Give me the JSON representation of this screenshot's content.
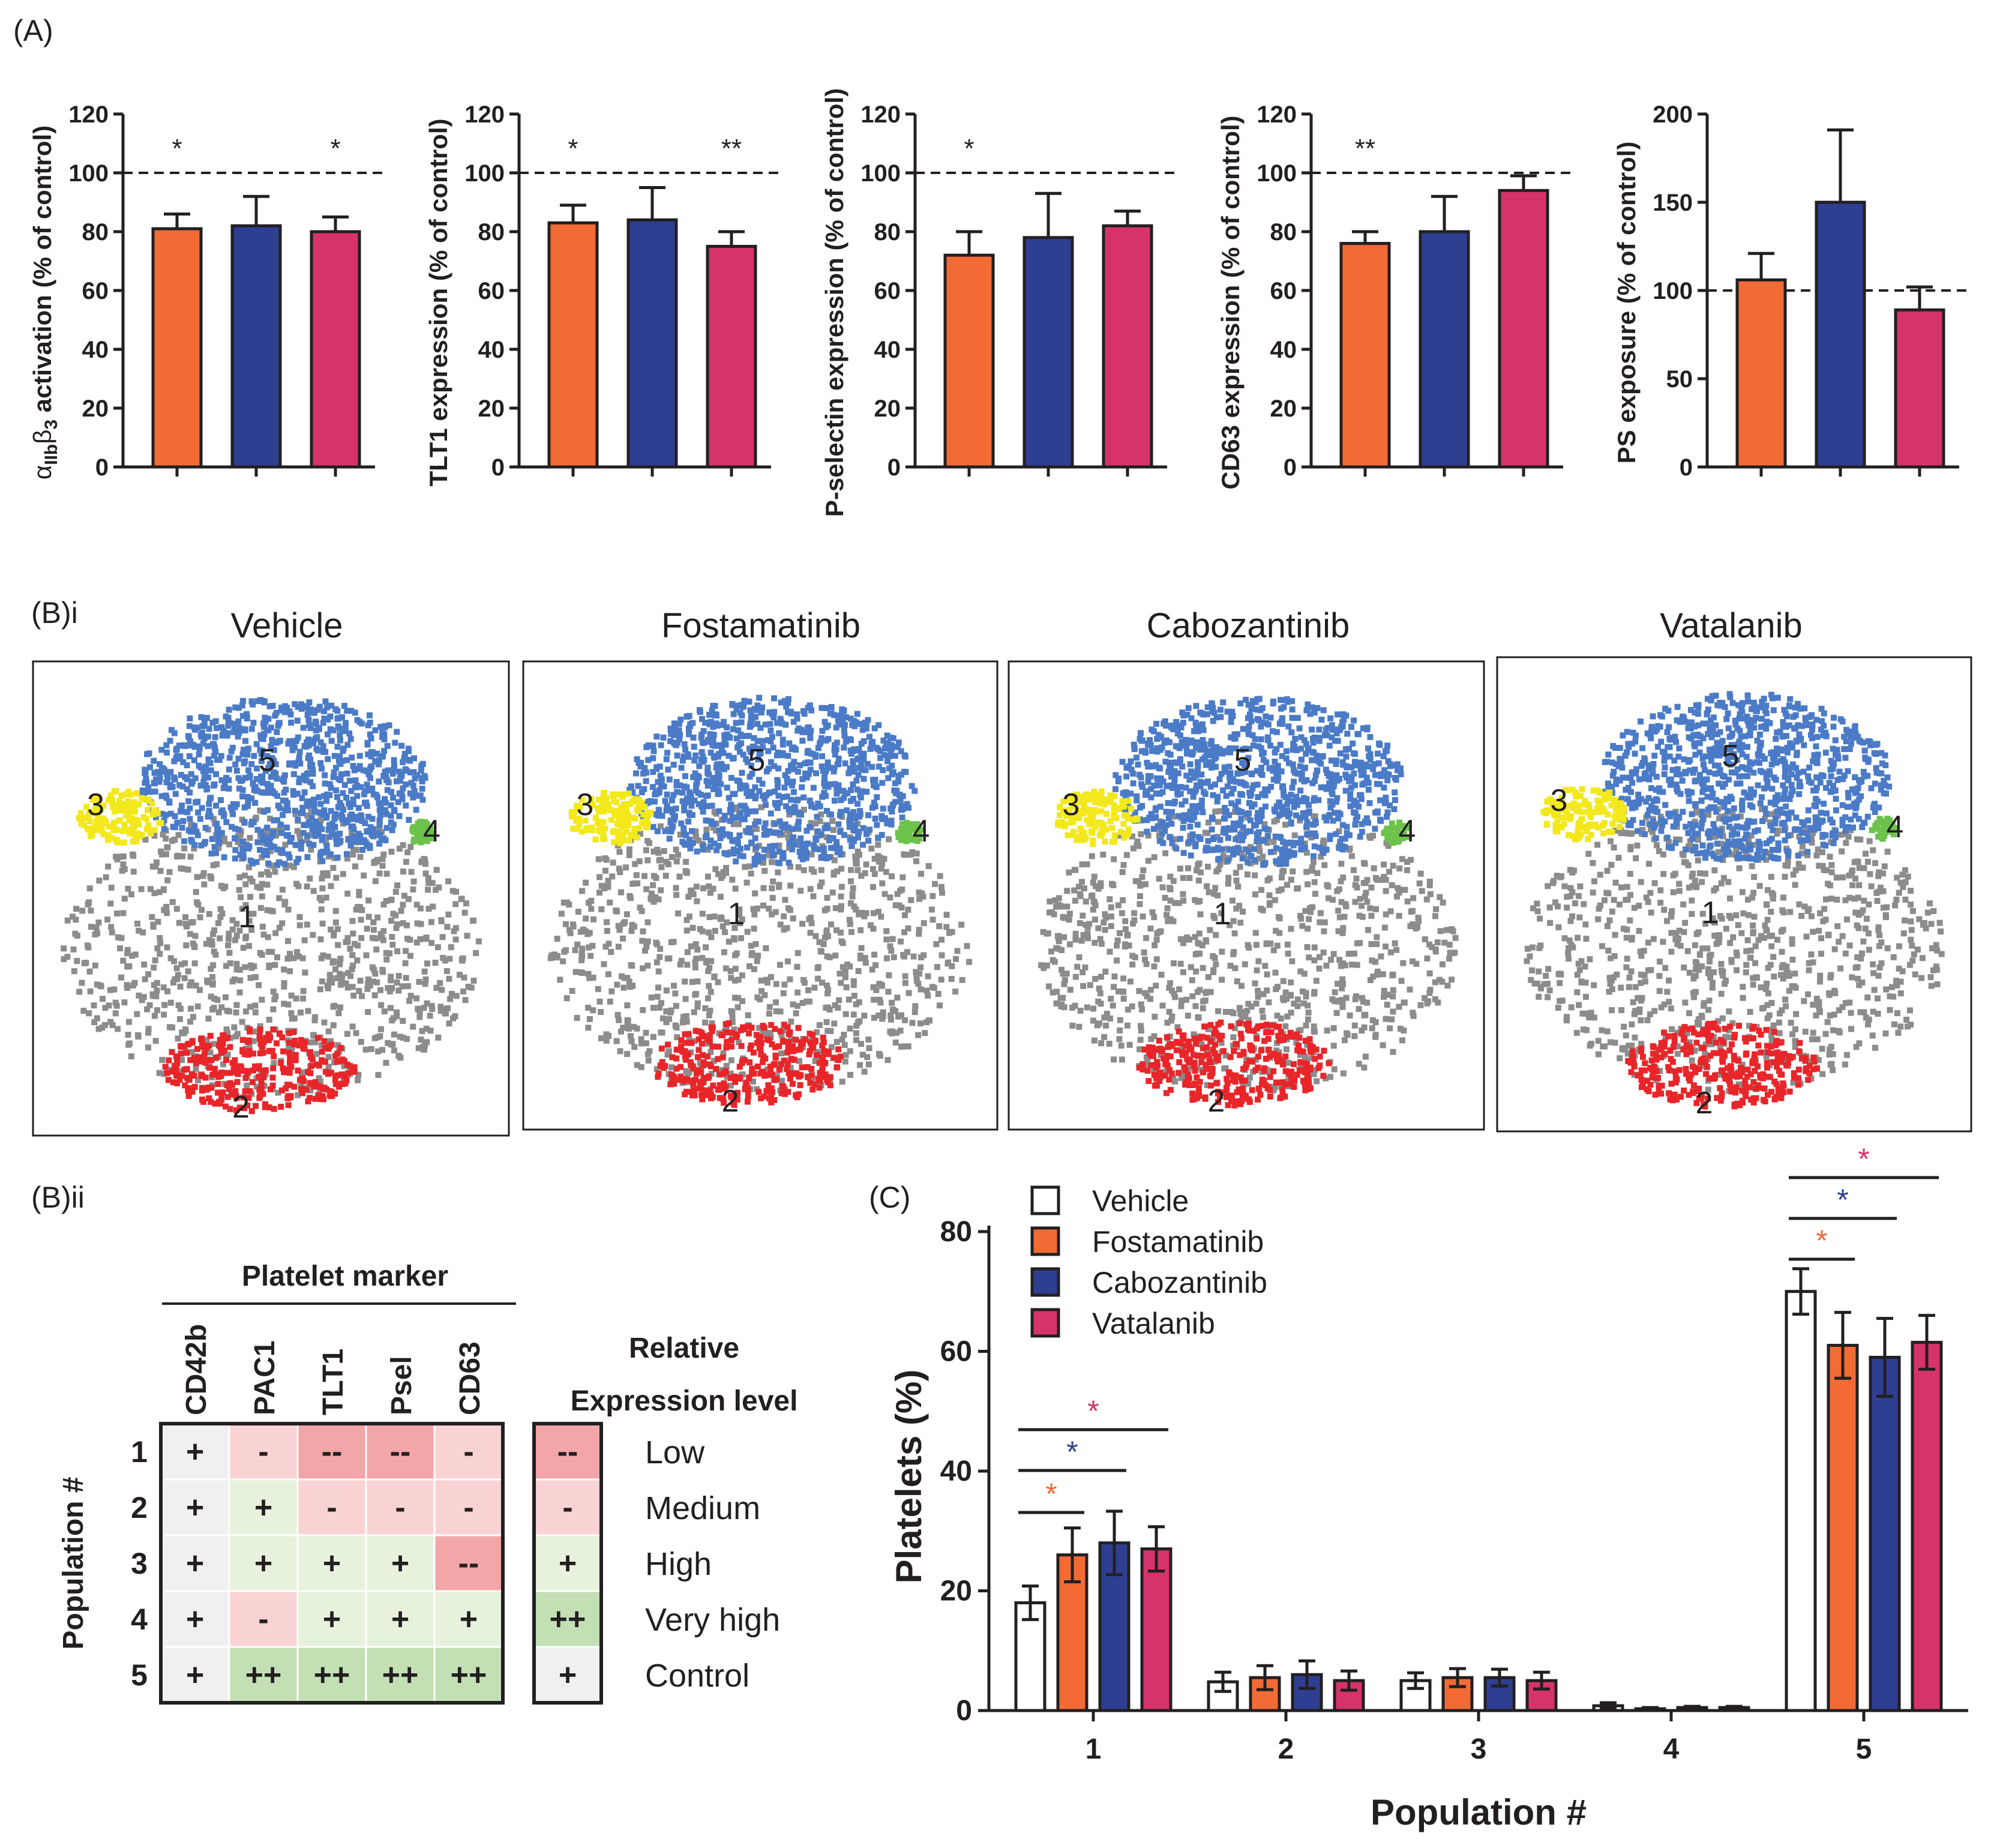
{
  "panel_labels": {
    "A": "(A)",
    "Bi": "(B)i",
    "Bii": "(B)ii",
    "C": "(C)"
  },
  "colors": {
    "Fostamatinib": "#f26b35",
    "Cabozantinib": "#2e3f92",
    "Vatalanib": "#d6336c",
    "Vehicle": "#ffffff",
    "pop1": "#8c8c8c",
    "pop2": "#e8262a",
    "pop3": "#f2e81c",
    "pop4": "#6cc24a",
    "pop5": "#4b7bc7"
  },
  "chart_data": [
    {
      "type": "bar",
      "panel": "A1",
      "categories": [
        "Fostamatinib",
        "Cabozantinib",
        "Vatalanib"
      ],
      "values": [
        81,
        82,
        80
      ],
      "errors": [
        5,
        10,
        5
      ],
      "ylim": [
        0,
        120
      ],
      "yticks": [
        "0",
        "20",
        "40",
        "60",
        "80",
        "100",
        "120"
      ],
      "reference_line": 100,
      "ylabel_parts": [
        "α",
        "IIb",
        "β",
        "3",
        " activation (% of control)"
      ],
      "significance": [
        "*",
        "",
        "*"
      ]
    },
    {
      "type": "bar",
      "panel": "A2",
      "categories": [
        "Fostamatinib",
        "Cabozantinib",
        "Vatalanib"
      ],
      "values": [
        83,
        84,
        75
      ],
      "errors": [
        6,
        11,
        5
      ],
      "ylim": [
        0,
        120
      ],
      "yticks": [
        "0",
        "20",
        "40",
        "60",
        "80",
        "100",
        "120"
      ],
      "reference_line": 100,
      "ylabel": "TLT1 expression  (% of control)",
      "significance": [
        "*",
        "",
        "**"
      ]
    },
    {
      "type": "bar",
      "panel": "A3",
      "categories": [
        "Fostamatinib",
        "Cabozantinib",
        "Vatalanib"
      ],
      "values": [
        72,
        78,
        82
      ],
      "errors": [
        8,
        15,
        5
      ],
      "ylim": [
        0,
        120
      ],
      "yticks": [
        "0",
        "20",
        "40",
        "60",
        "80",
        "100",
        "120"
      ],
      "reference_line": 100,
      "ylabel": "P-selectin expression (% of control)",
      "significance": [
        "*",
        "",
        ""
      ]
    },
    {
      "type": "bar",
      "panel": "A4",
      "categories": [
        "Fostamatinib",
        "Cabozantinib",
        "Vatalanib"
      ],
      "values": [
        76,
        80,
        94
      ],
      "errors": [
        4,
        12,
        5
      ],
      "ylim": [
        0,
        120
      ],
      "yticks": [
        "0",
        "20",
        "40",
        "60",
        "80",
        "100",
        "120"
      ],
      "reference_line": 100,
      "ylabel": "CD63 expression (% of control)",
      "significance": [
        "**",
        "",
        ""
      ]
    },
    {
      "type": "bar",
      "panel": "A5",
      "categories": [
        "Fostamatinib",
        "Cabozantinib",
        "Vatalanib"
      ],
      "values": [
        106,
        150,
        89
      ],
      "errors": [
        15,
        41,
        13
      ],
      "ylim": [
        0,
        200
      ],
      "yticks": [
        "0",
        "50",
        "100",
        "150",
        "200"
      ],
      "reference_line": 100,
      "ylabel": "PS exposure (% of control)",
      "significance": [
        "",
        "",
        ""
      ]
    },
    {
      "type": "bar",
      "panel": "C",
      "xlabel": "Population #",
      "ylabel": "Platelets (%)",
      "ylim": [
        0,
        80
      ],
      "yticks": [
        "0",
        "20",
        "40",
        "60",
        "80"
      ],
      "categories": [
        "1",
        "2",
        "3",
        "4",
        "5"
      ],
      "legend_position": "top-left",
      "series": [
        {
          "name": "Vehicle",
          "values": [
            18,
            4.8,
            5,
            0.8,
            70
          ],
          "errors": [
            2.8,
            1.6,
            1.3,
            0.5,
            3.8
          ]
        },
        {
          "name": "Fostamatinib",
          "values": [
            26,
            5.5,
            5.5,
            0.3,
            61
          ],
          "errors": [
            4.5,
            2,
            1.5,
            0.2,
            5.5
          ]
        },
        {
          "name": "Cabozantinib",
          "values": [
            28,
            6,
            5.5,
            0.5,
            59
          ],
          "errors": [
            5.3,
            2.3,
            1.4,
            0.2,
            6.5
          ]
        },
        {
          "name": "Vatalanib",
          "values": [
            27,
            5,
            5,
            0.5,
            61.5
          ],
          "errors": [
            3.7,
            1.6,
            1.4,
            0.2,
            4.5
          ]
        }
      ],
      "significance_brackets": [
        {
          "population": "1",
          "against": "Fostamatinib",
          "label": "*"
        },
        {
          "population": "1",
          "against": "Cabozantinib",
          "label": "*"
        },
        {
          "population": "1",
          "against": "Vatalanib",
          "label": "*"
        },
        {
          "population": "5",
          "against": "Fostamatinib",
          "label": "*"
        },
        {
          "population": "5",
          "against": "Cabozantinib",
          "label": "*"
        },
        {
          "population": "5",
          "against": "Vatalanib",
          "label": "*"
        }
      ]
    }
  ],
  "tsne": {
    "panels": [
      "Vehicle",
      "Fostamatinib",
      "Cabozantinib",
      "Vatalanib"
    ],
    "cluster_labels": [
      "1",
      "2",
      "3",
      "4",
      "5"
    ]
  },
  "table": {
    "title": "Platelet marker",
    "markers": [
      "CD42b",
      "PAC1",
      "TLT1",
      "Psel",
      "CD63"
    ],
    "row_axis_label": "Population #",
    "rows": [
      {
        "label": "1",
        "cells": [
          "+",
          "-",
          "--",
          "--",
          "-"
        ]
      },
      {
        "label": "2",
        "cells": [
          "+",
          "+",
          "-",
          "-",
          "-"
        ]
      },
      {
        "label": "3",
        "cells": [
          "+",
          "+",
          "+",
          "+",
          "--"
        ]
      },
      {
        "label": "4",
        "cells": [
          "+",
          "-",
          "+",
          "+",
          "+"
        ]
      },
      {
        "label": "5",
        "cells": [
          "+",
          "++",
          "++",
          "++",
          "++"
        ]
      }
    ],
    "legend_title_lines": [
      "Relative",
      "Expression level"
    ],
    "legend": [
      {
        "symbol": "--",
        "label": "Low"
      },
      {
        "symbol": "-",
        "label": "Medium"
      },
      {
        "symbol": "+",
        "label": "High"
      },
      {
        "symbol": "++",
        "label": "Very high"
      },
      {
        "symbol": "+",
        "label": "Control"
      }
    ]
  }
}
